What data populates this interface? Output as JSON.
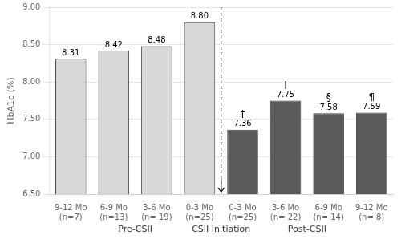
{
  "chart_data": {
    "type": "bar",
    "categories": [
      "9-12 Mo\n(n=7)",
      "6-9 Mo\n(n=13)",
      "3-6 Mo\n(n= 19)",
      "0-3 Mo\n(n=25)",
      "0-3 Mo\n(n=25)",
      "3-6 Mo\n(n= 22)",
      "6-9 Mo\n(n= 14)",
      "9-12 Mo\n(n= 8)"
    ],
    "values": [
      8.31,
      8.42,
      8.48,
      8.8,
      7.36,
      7.75,
      7.58,
      7.59
    ],
    "value_labels": [
      "8.31",
      "8.42",
      "8.48",
      "8.80",
      "7.36",
      "7.75",
      "7.58",
      "7.59"
    ],
    "data_labels": true,
    "colors": [
      "#d8d8d8",
      "#d8d8d8",
      "#d8d8d8",
      "#d8d8d8",
      "#5a5a5a",
      "#5a5a5a",
      "#5a5a5a",
      "#5a5a5a"
    ],
    "significance_labels": [
      null,
      null,
      null,
      null,
      "‡",
      "†",
      "§",
      "¶"
    ],
    "ylabel": "HbA1c (%)",
    "ylim": [
      6.5,
      9.0
    ],
    "yticks": [
      {
        "value": 6.5,
        "label": "6.50"
      },
      {
        "value": 7.0,
        "label": "7.00"
      },
      {
        "value": 7.5,
        "label": "7.50"
      },
      {
        "value": 8.0,
        "label": "8.00"
      },
      {
        "value": 8.5,
        "label": "8.50"
      },
      {
        "value": 9.0,
        "label": "9.00"
      }
    ],
    "grid": true,
    "divider": 3.5,
    "group_labels": [
      {
        "label": "Pre-CSII",
        "x": 1.5
      },
      {
        "label": "CSII Initiation",
        "x": 3.5
      },
      {
        "label": "Post-CSII",
        "x": 5.5
      }
    ]
  }
}
